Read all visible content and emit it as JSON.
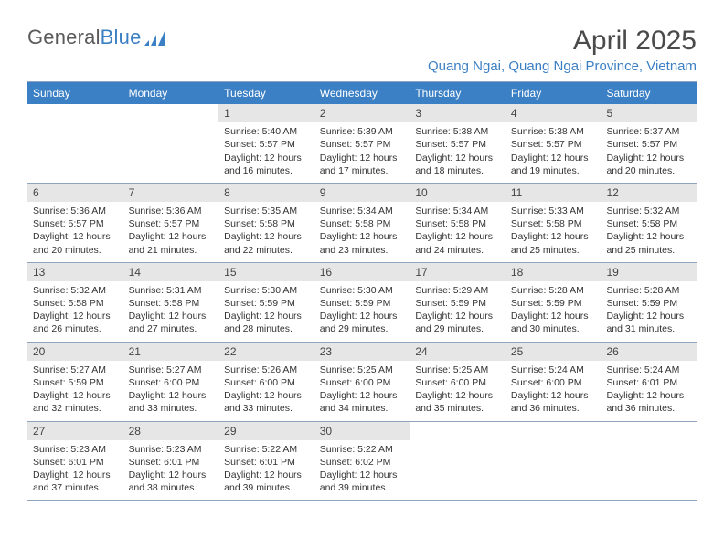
{
  "logo": {
    "text_part1": "General",
    "text_part2": "Blue"
  },
  "title": "April 2025",
  "location": "Quang Ngai, Quang Ngai Province, Vietnam",
  "colors": {
    "header_blue": "#3b7fc4",
    "daynum_bg": "#e6e6e6",
    "border": "#8fa5bf",
    "text": "#333333",
    "title_gray": "#4a4a4a",
    "logo_gray": "#5a5a5a",
    "background": "#ffffff"
  },
  "weekdays": [
    "Sunday",
    "Monday",
    "Tuesday",
    "Wednesday",
    "Thursday",
    "Friday",
    "Saturday"
  ],
  "weeks": [
    [
      null,
      null,
      {
        "n": "1",
        "sunrise": "5:40 AM",
        "sunset": "5:57 PM",
        "daylight": "12 hours and 16 minutes."
      },
      {
        "n": "2",
        "sunrise": "5:39 AM",
        "sunset": "5:57 PM",
        "daylight": "12 hours and 17 minutes."
      },
      {
        "n": "3",
        "sunrise": "5:38 AM",
        "sunset": "5:57 PM",
        "daylight": "12 hours and 18 minutes."
      },
      {
        "n": "4",
        "sunrise": "5:38 AM",
        "sunset": "5:57 PM",
        "daylight": "12 hours and 19 minutes."
      },
      {
        "n": "5",
        "sunrise": "5:37 AM",
        "sunset": "5:57 PM",
        "daylight": "12 hours and 20 minutes."
      }
    ],
    [
      {
        "n": "6",
        "sunrise": "5:36 AM",
        "sunset": "5:57 PM",
        "daylight": "12 hours and 20 minutes."
      },
      {
        "n": "7",
        "sunrise": "5:36 AM",
        "sunset": "5:57 PM",
        "daylight": "12 hours and 21 minutes."
      },
      {
        "n": "8",
        "sunrise": "5:35 AM",
        "sunset": "5:58 PM",
        "daylight": "12 hours and 22 minutes."
      },
      {
        "n": "9",
        "sunrise": "5:34 AM",
        "sunset": "5:58 PM",
        "daylight": "12 hours and 23 minutes."
      },
      {
        "n": "10",
        "sunrise": "5:34 AM",
        "sunset": "5:58 PM",
        "daylight": "12 hours and 24 minutes."
      },
      {
        "n": "11",
        "sunrise": "5:33 AM",
        "sunset": "5:58 PM",
        "daylight": "12 hours and 25 minutes."
      },
      {
        "n": "12",
        "sunrise": "5:32 AM",
        "sunset": "5:58 PM",
        "daylight": "12 hours and 25 minutes."
      }
    ],
    [
      {
        "n": "13",
        "sunrise": "5:32 AM",
        "sunset": "5:58 PM",
        "daylight": "12 hours and 26 minutes."
      },
      {
        "n": "14",
        "sunrise": "5:31 AM",
        "sunset": "5:58 PM",
        "daylight": "12 hours and 27 minutes."
      },
      {
        "n": "15",
        "sunrise": "5:30 AM",
        "sunset": "5:59 PM",
        "daylight": "12 hours and 28 minutes."
      },
      {
        "n": "16",
        "sunrise": "5:30 AM",
        "sunset": "5:59 PM",
        "daylight": "12 hours and 29 minutes."
      },
      {
        "n": "17",
        "sunrise": "5:29 AM",
        "sunset": "5:59 PM",
        "daylight": "12 hours and 29 minutes."
      },
      {
        "n": "18",
        "sunrise": "5:28 AM",
        "sunset": "5:59 PM",
        "daylight": "12 hours and 30 minutes."
      },
      {
        "n": "19",
        "sunrise": "5:28 AM",
        "sunset": "5:59 PM",
        "daylight": "12 hours and 31 minutes."
      }
    ],
    [
      {
        "n": "20",
        "sunrise": "5:27 AM",
        "sunset": "5:59 PM",
        "daylight": "12 hours and 32 minutes."
      },
      {
        "n": "21",
        "sunrise": "5:27 AM",
        "sunset": "6:00 PM",
        "daylight": "12 hours and 33 minutes."
      },
      {
        "n": "22",
        "sunrise": "5:26 AM",
        "sunset": "6:00 PM",
        "daylight": "12 hours and 33 minutes."
      },
      {
        "n": "23",
        "sunrise": "5:25 AM",
        "sunset": "6:00 PM",
        "daylight": "12 hours and 34 minutes."
      },
      {
        "n": "24",
        "sunrise": "5:25 AM",
        "sunset": "6:00 PM",
        "daylight": "12 hours and 35 minutes."
      },
      {
        "n": "25",
        "sunrise": "5:24 AM",
        "sunset": "6:00 PM",
        "daylight": "12 hours and 36 minutes."
      },
      {
        "n": "26",
        "sunrise": "5:24 AM",
        "sunset": "6:01 PM",
        "daylight": "12 hours and 36 minutes."
      }
    ],
    [
      {
        "n": "27",
        "sunrise": "5:23 AM",
        "sunset": "6:01 PM",
        "daylight": "12 hours and 37 minutes."
      },
      {
        "n": "28",
        "sunrise": "5:23 AM",
        "sunset": "6:01 PM",
        "daylight": "12 hours and 38 minutes."
      },
      {
        "n": "29",
        "sunrise": "5:22 AM",
        "sunset": "6:01 PM",
        "daylight": "12 hours and 39 minutes."
      },
      {
        "n": "30",
        "sunrise": "5:22 AM",
        "sunset": "6:02 PM",
        "daylight": "12 hours and 39 minutes."
      },
      null,
      null,
      null
    ]
  ],
  "labels": {
    "sunrise": "Sunrise:",
    "sunset": "Sunset:",
    "daylight": "Daylight:"
  }
}
